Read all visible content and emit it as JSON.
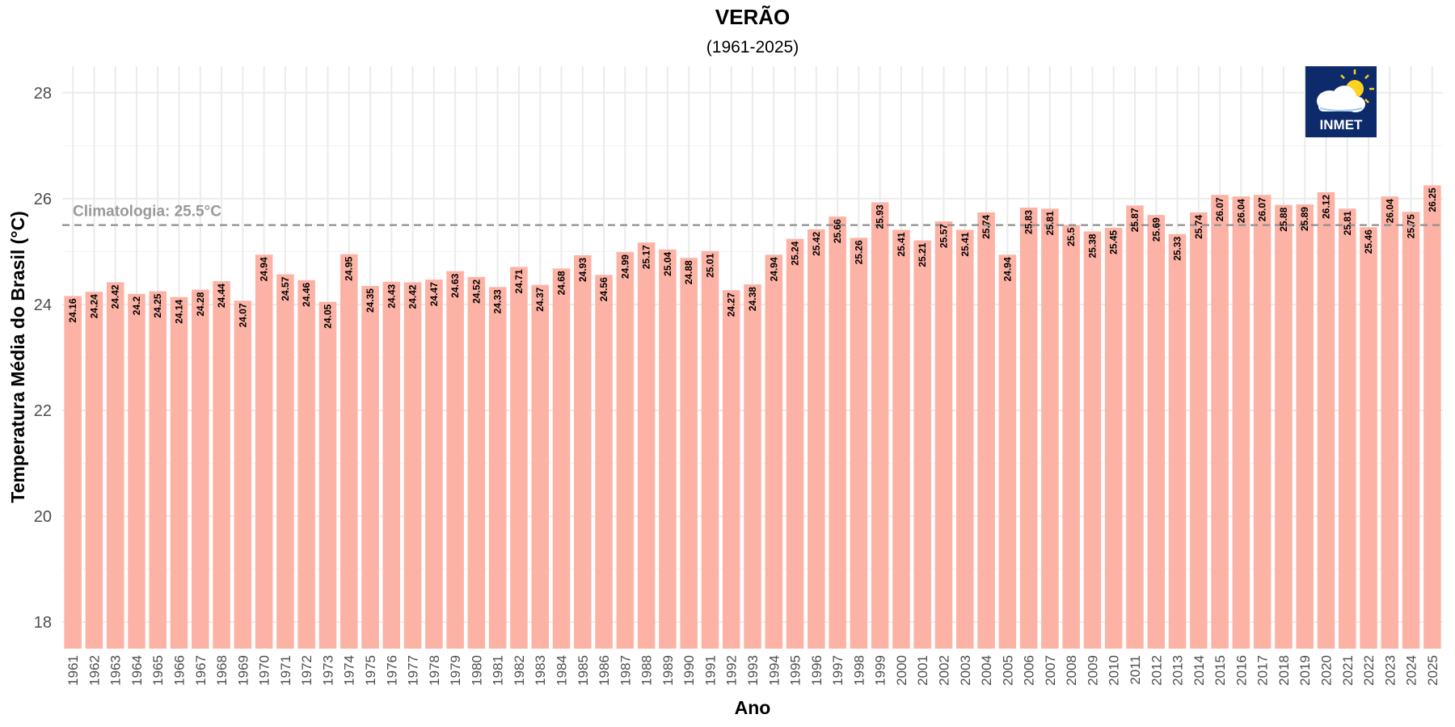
{
  "chart_data": {
    "type": "bar",
    "title": "VERÃO",
    "subtitle": "(1961-2025)",
    "xlabel": "Ano",
    "ylabel": "Temperatura Média do Brasil (°C)",
    "ylim": [
      17.5,
      28.5
    ],
    "yticks": [
      "18",
      "20",
      "22",
      "24",
      "26",
      "28"
    ],
    "grid": true,
    "bar_color": "#fcb3a5",
    "reference_line": {
      "value": 25.5,
      "label": "Climatologia: 25.5°C",
      "color": "#999999"
    },
    "categories": [
      "1961",
      "1962",
      "1963",
      "1964",
      "1965",
      "1966",
      "1967",
      "1968",
      "1969",
      "1970",
      "1971",
      "1972",
      "1973",
      "1974",
      "1975",
      "1976",
      "1977",
      "1978",
      "1979",
      "1980",
      "1981",
      "1982",
      "1983",
      "1984",
      "1985",
      "1986",
      "1987",
      "1988",
      "1989",
      "1990",
      "1991",
      "1992",
      "1993",
      "1994",
      "1995",
      "1996",
      "1997",
      "1998",
      "1999",
      "2000",
      "2001",
      "2002",
      "2003",
      "2004",
      "2005",
      "2006",
      "2007",
      "2008",
      "2009",
      "2010",
      "2011",
      "2012",
      "2013",
      "2014",
      "2015",
      "2016",
      "2017",
      "2018",
      "2019",
      "2020",
      "2021",
      "2022",
      "2023",
      "2024",
      "2025"
    ],
    "values": [
      24.16,
      24.24,
      24.42,
      24.2,
      24.25,
      24.14,
      24.28,
      24.44,
      24.07,
      24.94,
      24.57,
      24.46,
      24.05,
      24.95,
      24.35,
      24.43,
      24.42,
      24.47,
      24.63,
      24.52,
      24.33,
      24.71,
      24.37,
      24.68,
      24.93,
      24.56,
      24.99,
      25.17,
      25.04,
      24.88,
      25.01,
      24.27,
      24.38,
      24.94,
      25.24,
      25.42,
      25.66,
      25.26,
      25.93,
      25.41,
      25.21,
      25.57,
      25.41,
      25.74,
      24.94,
      25.83,
      25.81,
      25.5,
      25.38,
      25.45,
      25.87,
      25.69,
      25.33,
      25.74,
      26.07,
      26.04,
      26.07,
      25.88,
      25.89,
      26.12,
      25.81,
      25.46,
      26.04,
      25.75,
      26.25
    ]
  },
  "logo": {
    "text": "INMET",
    "icon": "cloud-sun-icon",
    "bg_color": "#0d2a6b"
  }
}
